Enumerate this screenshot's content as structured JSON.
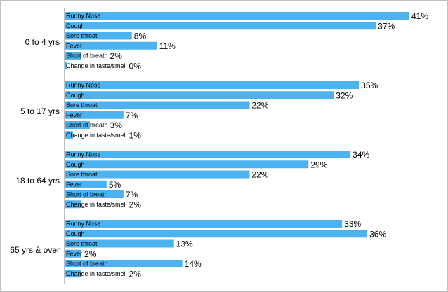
{
  "chart_data": {
    "type": "bar",
    "orientation": "horizontal",
    "unit": "%",
    "bar_color": "#4DB3F0",
    "axis_color": "#7f7f7f",
    "xlim": [
      0,
      41
    ],
    "groups": [
      {
        "name": "0 to 4 yrs",
        "bars": [
          {
            "label": "Runny Nose",
            "value": 41
          },
          {
            "label": "Cough",
            "value": 37
          },
          {
            "label": "Sore throat",
            "value": 8
          },
          {
            "label": "Fever",
            "value": 11
          },
          {
            "label": "Short of breath",
            "value": 2
          },
          {
            "label": "Change in taste/smell",
            "value": 0
          }
        ]
      },
      {
        "name": "5 to 17 yrs",
        "bars": [
          {
            "label": "Runny Nose",
            "value": 35
          },
          {
            "label": "Cough",
            "value": 32
          },
          {
            "label": "Sore throat",
            "value": 22
          },
          {
            "label": "Fever",
            "value": 7
          },
          {
            "label": "Short of breath",
            "value": 3
          },
          {
            "label": "Change in taste/smell",
            "value": 1
          }
        ]
      },
      {
        "name": "18 to 64 yrs",
        "bars": [
          {
            "label": "Runny Nose",
            "value": 34
          },
          {
            "label": "Cough",
            "value": 29
          },
          {
            "label": "Sore throat",
            "value": 22
          },
          {
            "label": "Fever",
            "value": 5
          },
          {
            "label": "Short of breath",
            "value": 7
          },
          {
            "label": "Change in taste/smell",
            "value": 2
          }
        ]
      },
      {
        "name": "65 yrs & over",
        "bars": [
          {
            "label": "Runny Nose",
            "value": 33
          },
          {
            "label": "Cough",
            "value": 36
          },
          {
            "label": "Sore throat",
            "value": 13
          },
          {
            "label": "Fever",
            "value": 2
          },
          {
            "label": "Short of breath",
            "value": 14
          },
          {
            "label": "Change in taste/smell",
            "value": 2
          }
        ]
      }
    ]
  }
}
